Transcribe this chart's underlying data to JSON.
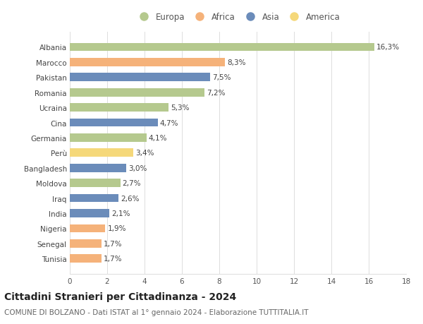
{
  "countries": [
    "Albania",
    "Marocco",
    "Pakistan",
    "Romania",
    "Ucraina",
    "Cina",
    "Germania",
    "Perù",
    "Bangladesh",
    "Moldova",
    "Iraq",
    "India",
    "Nigeria",
    "Senegal",
    "Tunisia"
  ],
  "values": [
    16.3,
    8.3,
    7.5,
    7.2,
    5.3,
    4.7,
    4.1,
    3.4,
    3.0,
    2.7,
    2.6,
    2.1,
    1.9,
    1.7,
    1.7
  ],
  "labels": [
    "16,3%",
    "8,3%",
    "7,5%",
    "7,2%",
    "5,3%",
    "4,7%",
    "4,1%",
    "3,4%",
    "3,0%",
    "2,7%",
    "2,6%",
    "2,1%",
    "1,9%",
    "1,7%",
    "1,7%"
  ],
  "continents": [
    "Europa",
    "Africa",
    "Asia",
    "Europa",
    "Europa",
    "Asia",
    "Europa",
    "America",
    "Asia",
    "Europa",
    "Asia",
    "Asia",
    "Africa",
    "Africa",
    "Africa"
  ],
  "colors": {
    "Europa": "#b5c98e",
    "Africa": "#f5b27a",
    "Asia": "#6b8cba",
    "America": "#f5d87a"
  },
  "legend_order": [
    "Europa",
    "Africa",
    "Asia",
    "America"
  ],
  "title": "Cittadini Stranieri per Cittadinanza - 2024",
  "subtitle": "COMUNE DI BOLZANO - Dati ISTAT al 1° gennaio 2024 - Elaborazione TUTTITALIA.IT",
  "xlim": [
    0,
    18
  ],
  "xticks": [
    0,
    2,
    4,
    6,
    8,
    10,
    12,
    14,
    16,
    18
  ],
  "bg_color": "#ffffff",
  "grid_color": "#dddddd",
  "bar_height": 0.55,
  "title_fontsize": 10,
  "subtitle_fontsize": 7.5,
  "label_fontsize": 7.5,
  "tick_fontsize": 7.5,
  "legend_fontsize": 8.5
}
